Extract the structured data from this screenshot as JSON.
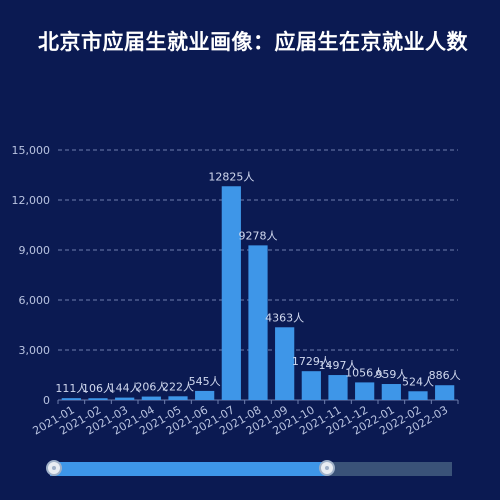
{
  "title": "北京市应届生就业画像：应届生在京就业人数",
  "colors": {
    "background": "#0b1a52",
    "bar": "#3e96e8",
    "grid": "#6f7fae",
    "axis_text": "#b9c3e0",
    "label_text": "#d0d8ee"
  },
  "chart_data": {
    "type": "bar",
    "categories": [
      "2021-01",
      "2021-02",
      "2021-03",
      "2021-04",
      "2021-05",
      "2021-06",
      "2021-07",
      "2021-08",
      "2021-09",
      "2021-10",
      "2021-11",
      "2021-12",
      "2022-01",
      "2022-02",
      "2022-03"
    ],
    "values": [
      111,
      106,
      144,
      206,
      222,
      545,
      12825,
      9278,
      4363,
      1729,
      1497,
      1056,
      959,
      524,
      886
    ],
    "data_label_suffix": "人",
    "ylim": [
      0,
      15000
    ],
    "yticks": [
      "0",
      "3,000",
      "6,000",
      "9,000",
      "12,000",
      "15,000"
    ],
    "ytick_values": [
      0,
      3000,
      6000,
      9000,
      12000,
      15000
    ],
    "grid": true,
    "xlabel": "",
    "ylabel": ""
  },
  "zoom": {
    "start": 0,
    "end": 0.69
  }
}
